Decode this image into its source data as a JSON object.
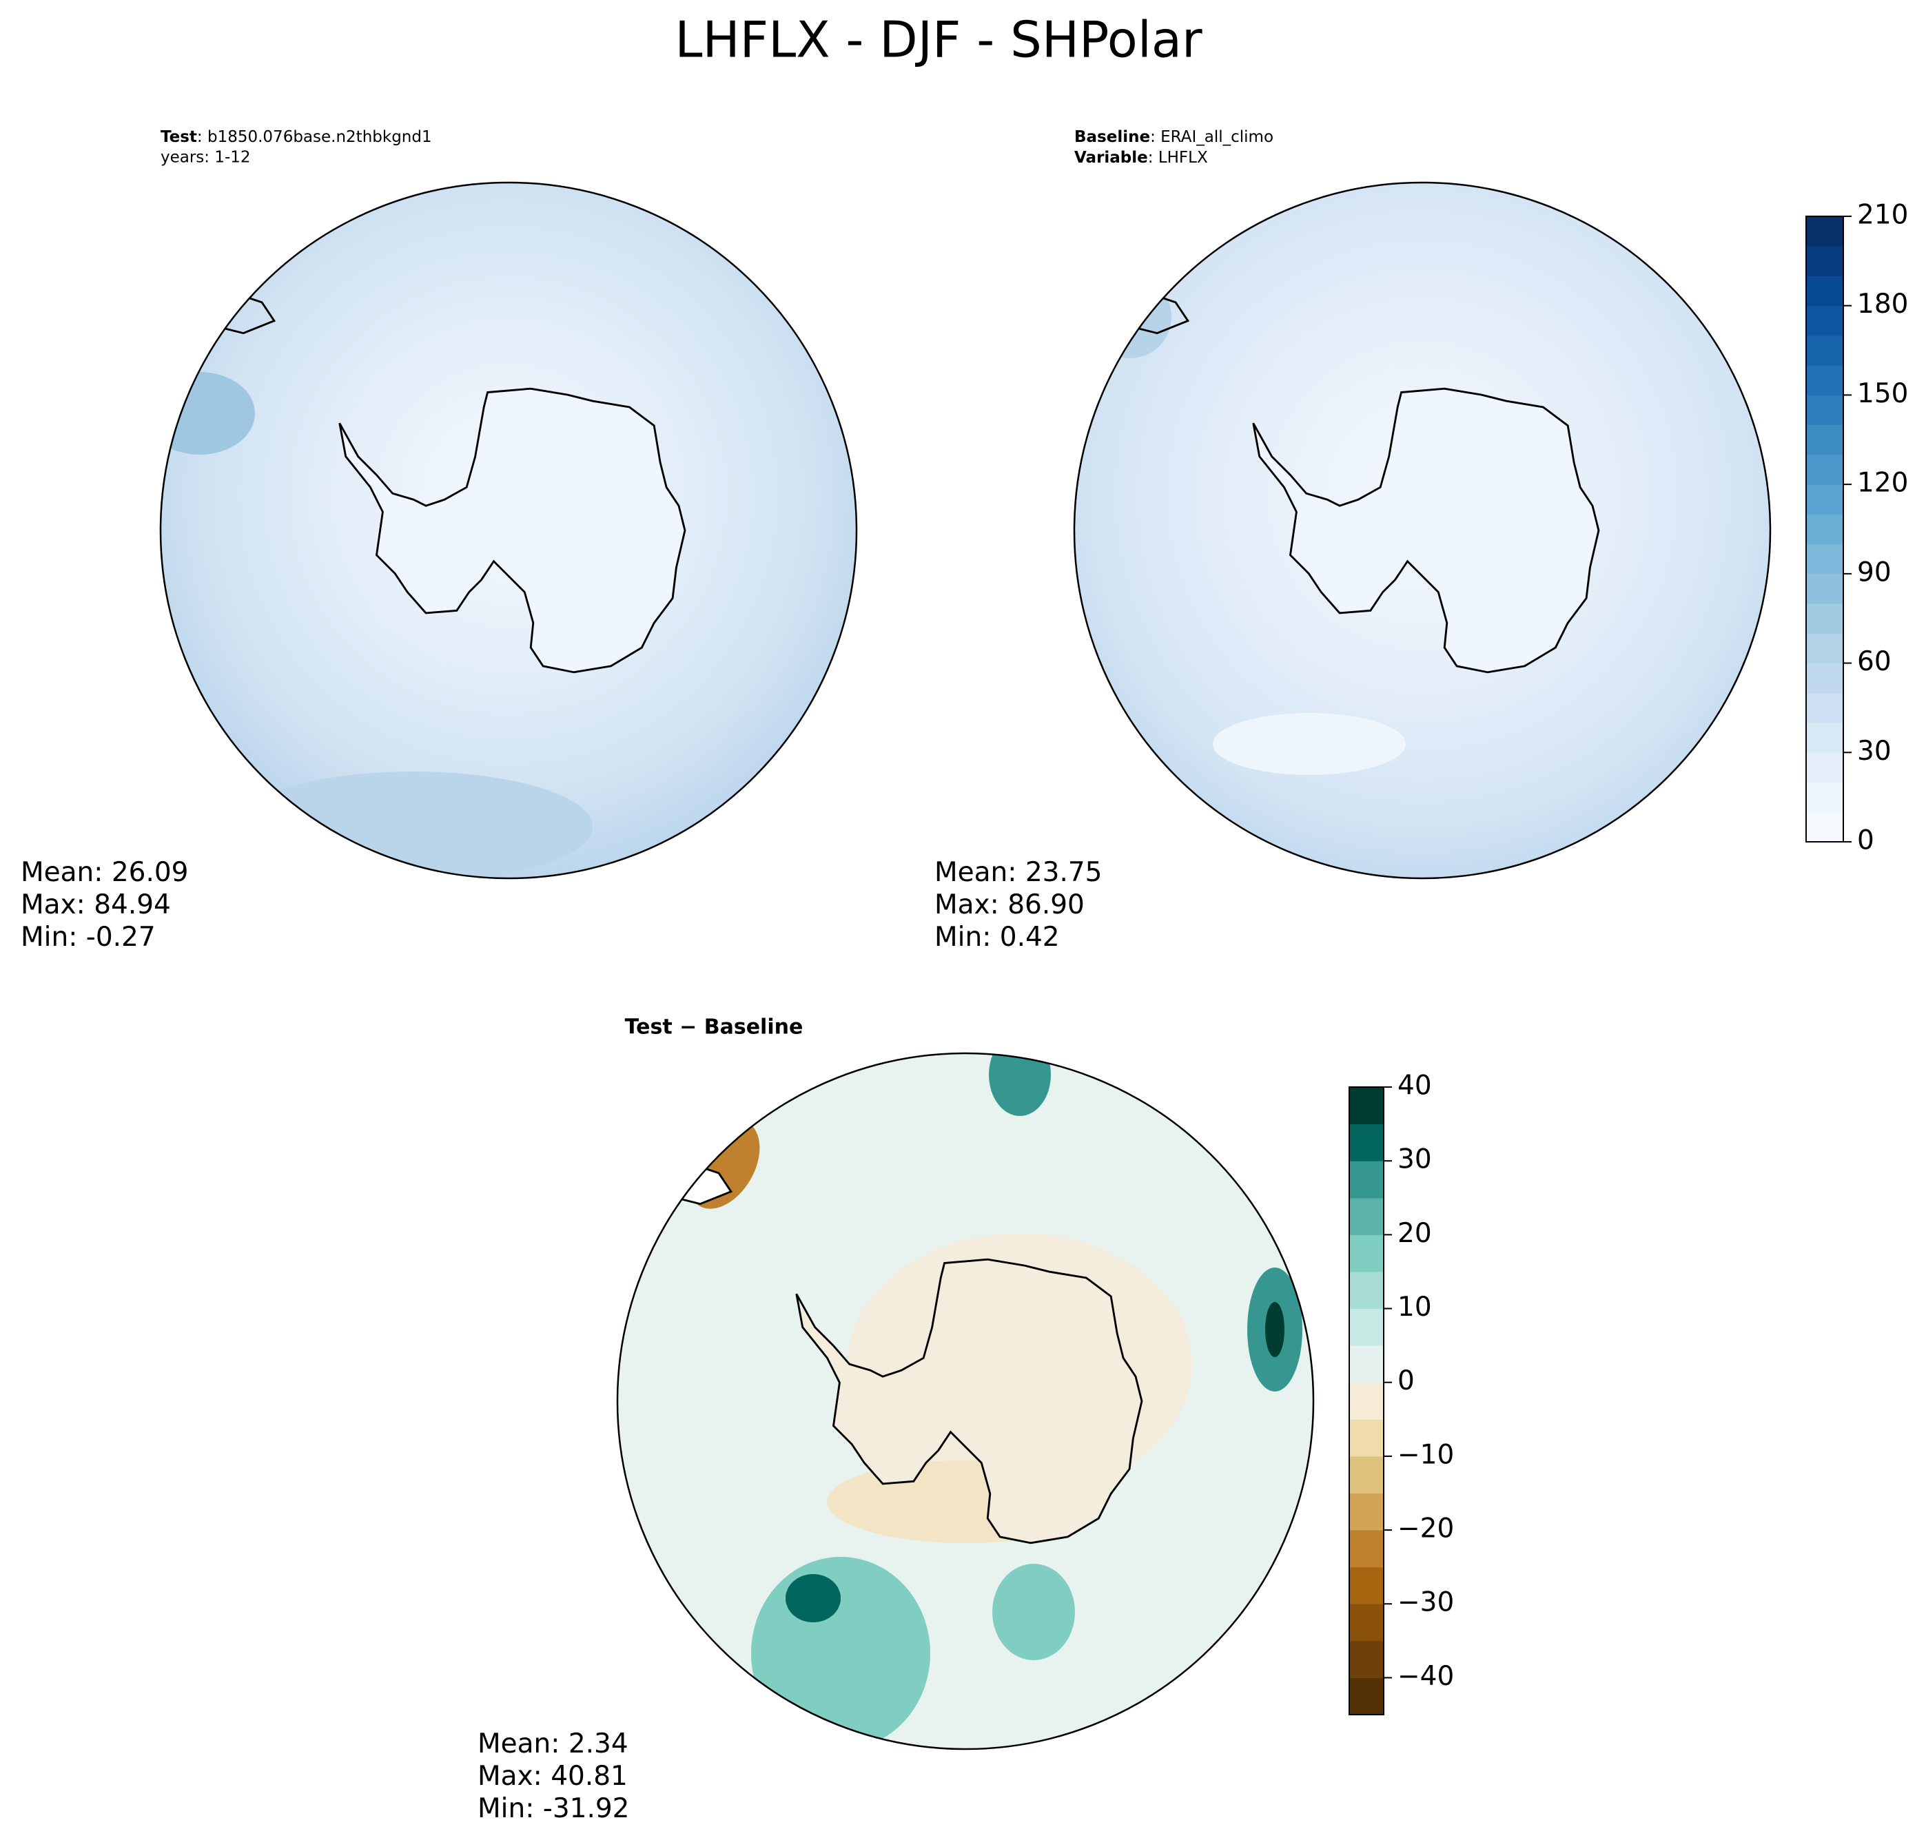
{
  "title": "LHFLX - DJF - SHPolar",
  "panels": [
    {
      "header": [
        {
          "label": "Test",
          "text": ": b1850.076base.n2thbkgnd1"
        },
        {
          "text": "years: 1-12"
        }
      ],
      "stats": [
        {
          "label": "Mean:",
          "value": "26.09"
        },
        {
          "label": "Max:",
          "value": "84.94"
        },
        {
          "label": "Min:",
          "value": "-0.27"
        }
      ]
    },
    {
      "header": [
        {
          "label": "Baseline",
          "text": ": ERAI_all_climo"
        },
        {
          "label": "Variable",
          "text": ": LHFLX"
        }
      ],
      "stats": [
        {
          "label": "Mean:",
          "value": "23.75"
        },
        {
          "label": "Max:",
          "value": "86.90"
        },
        {
          "label": "Min:",
          "value": "0.42"
        }
      ]
    },
    {
      "title": "Test − Baseline",
      "stats": [
        {
          "label": "Mean:",
          "value": "2.34"
        },
        {
          "label": "Max:",
          "value": "40.81"
        },
        {
          "label": "Min:",
          "value": "-31.92"
        }
      ]
    }
  ],
  "colorbars": [
    {
      "lim": [
        0,
        210
      ],
      "ticks": [
        0,
        30,
        60,
        90,
        120,
        150,
        180,
        210
      ],
      "levels": [
        0,
        10,
        20,
        30,
        40,
        50,
        60,
        70,
        80,
        90,
        100,
        110,
        120,
        130,
        140,
        150,
        160,
        170,
        180,
        190,
        200,
        210
      ],
      "colors": [
        "#f7fbff",
        "#eef5fc",
        "#e3eef9",
        "#d9e8f5",
        "#cde0f1",
        "#c1d9ed",
        "#b2d2e8",
        "#a2cbe2",
        "#8fc1de",
        "#7db7da",
        "#6aaed6",
        "#5ba3d0",
        "#4b98ca",
        "#3d8dc4",
        "#2f7fbc",
        "#2171b5",
        "#1764ab",
        "#0d57a1",
        "#084a91",
        "#083d7f",
        "#08306b"
      ]
    },
    {
      "lim": [
        -45,
        40
      ],
      "ticks": [
        {
          "value": -40,
          "label": "−40"
        },
        {
          "value": -30,
          "label": "−30"
        },
        {
          "value": -20,
          "label": "−20"
        },
        {
          "value": -10,
          "label": "−10"
        },
        0,
        10,
        20,
        30,
        40
      ],
      "levels": [
        -45,
        -40,
        -35,
        -30,
        -25,
        -20,
        -15,
        -10,
        -5,
        0,
        5,
        10,
        15,
        20,
        25,
        30,
        35,
        40
      ],
      "colors": [
        "#543005",
        "#6e400a",
        "#8a510b",
        "#a6650f",
        "#bf812d",
        "#d1a555",
        "#dfc27d",
        "#efdcaa",
        "#f6ecd6",
        "#e6f2ef",
        "#c7eae5",
        "#a6dcd3",
        "#80cdc1",
        "#5ab2a8",
        "#35978f",
        "#01665e",
        "#003c30"
      ]
    }
  ]
}
